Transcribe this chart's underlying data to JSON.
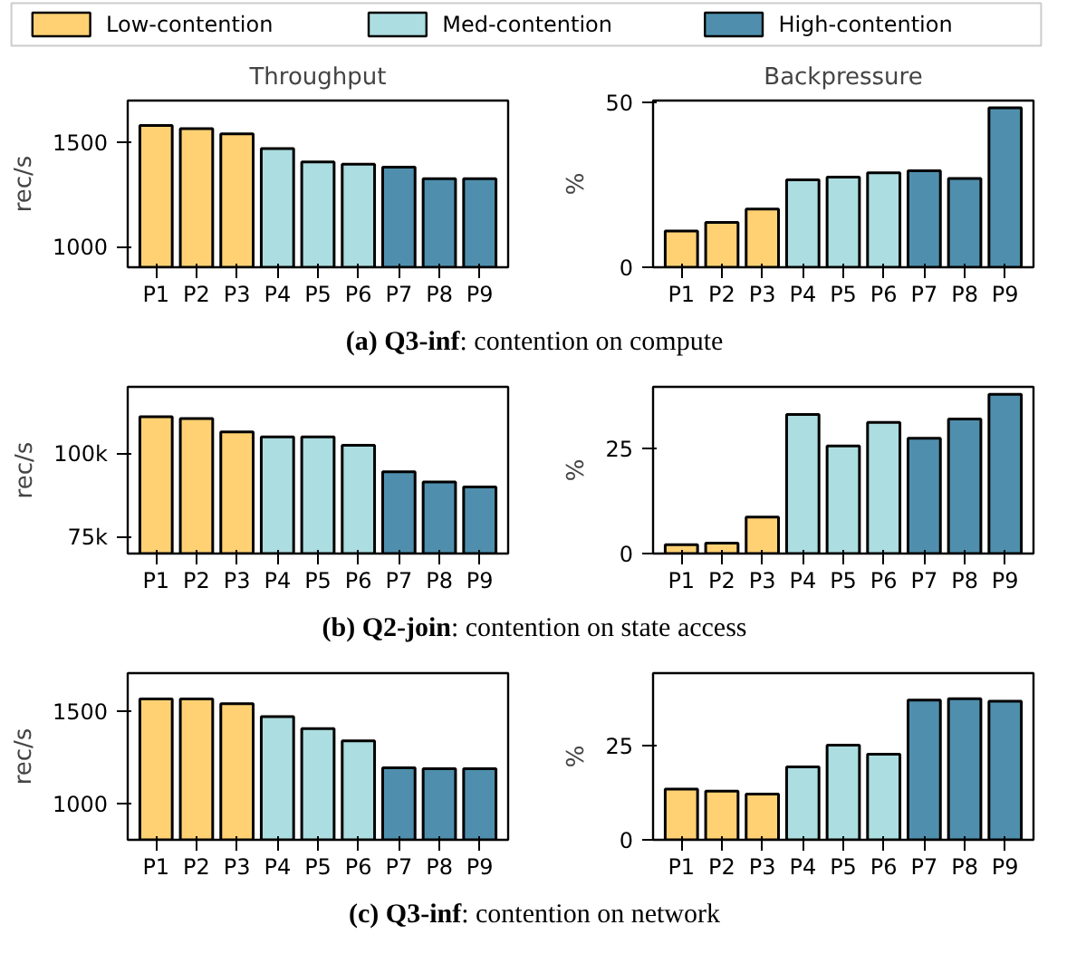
{
  "chart_data": [
    {
      "type": "bar",
      "title": "Throughput",
      "ylabel": "rec/s",
      "legend": "top",
      "annotations": [
        "(a) Q3-inf: contention on compute"
      ],
      "categories": [
        "P1",
        "P2",
        "P3",
        "P4",
        "P5",
        "P6",
        "P7",
        "P8",
        "P9"
      ],
      "ylim": [
        900,
        1700
      ],
      "yticks": [
        1000,
        1500
      ],
      "series": [
        {
          "name": "Low-contention",
          "color": "#ffd173",
          "values": [
            1580,
            1565,
            1540,
            null,
            null,
            null,
            null,
            null,
            null
          ]
        },
        {
          "name": "Med-contention",
          "color": "#acdde0",
          "values": [
            null,
            null,
            null,
            1470,
            1405,
            1395,
            null,
            null,
            null
          ]
        },
        {
          "name": "High-contention",
          "color": "#4f8fad",
          "values": [
            null,
            null,
            null,
            null,
            null,
            null,
            1380,
            1325,
            1325
          ]
        }
      ]
    },
    {
      "type": "bar",
      "title": "Backpressure",
      "ylabel": "%",
      "categories": [
        "P1",
        "P2",
        "P3",
        "P4",
        "P5",
        "P6",
        "P7",
        "P8",
        "P9"
      ],
      "ylim": [
        0,
        50.5
      ],
      "yticks": [
        0,
        50
      ],
      "series": [
        {
          "color": "#ffd173",
          "values": [
            11,
            13.6,
            17.6,
            null,
            null,
            null,
            null,
            null,
            null
          ]
        },
        {
          "color": "#acdde0",
          "values": [
            null,
            null,
            null,
            26.5,
            27.3,
            28.6,
            null,
            null,
            null
          ]
        },
        {
          "color": "#4f8fad",
          "values": [
            null,
            null,
            null,
            null,
            null,
            null,
            29.2,
            26.9,
            48.3
          ]
        }
      ]
    },
    {
      "type": "bar",
      "ylabel": "rec/s",
      "annotations": [
        "(b) Q2-join: contention on state access"
      ],
      "categories": [
        "P1",
        "P2",
        "P3",
        "P4",
        "P5",
        "P6",
        "P7",
        "P8",
        "P9"
      ],
      "ylim": [
        70000,
        120000
      ],
      "yticks": [
        {
          "value": 75000,
          "label": "75k"
        },
        {
          "value": 100000,
          "label": "100k"
        }
      ],
      "series": [
        {
          "color": "#ffd173",
          "values": [
            111000,
            110500,
            106500,
            null,
            null,
            null,
            null,
            null,
            null
          ]
        },
        {
          "color": "#acdde0",
          "values": [
            null,
            null,
            null,
            105000,
            105000,
            102500,
            null,
            null,
            null
          ]
        },
        {
          "color": "#4f8fad",
          "values": [
            null,
            null,
            null,
            null,
            null,
            null,
            94500,
            91500,
            90000
          ]
        }
      ]
    },
    {
      "type": "bar",
      "ylabel": "%",
      "categories": [
        "P1",
        "P2",
        "P3",
        "P4",
        "P5",
        "P6",
        "P7",
        "P8",
        "P9"
      ],
      "ylim": [
        0,
        39.8
      ],
      "yticks": [
        0,
        25
      ],
      "series": [
        {
          "color": "#ffd173",
          "values": [
            2.1,
            2.5,
            8.7,
            null,
            null,
            null,
            null,
            null,
            null
          ]
        },
        {
          "color": "#acdde0",
          "values": [
            null,
            null,
            null,
            33.2,
            25.7,
            31.3,
            null,
            null,
            null
          ]
        },
        {
          "color": "#4f8fad",
          "values": [
            null,
            null,
            null,
            null,
            null,
            null,
            27.5,
            32.1,
            38
          ]
        }
      ]
    },
    {
      "type": "bar",
      "ylabel": "rec/s",
      "annotations": [
        "(c) Q3-inf: contention on network"
      ],
      "categories": [
        "P1",
        "P2",
        "P3",
        "P4",
        "P5",
        "P6",
        "P7",
        "P8",
        "P9"
      ],
      "ylim": [
        807,
        1704
      ],
      "yticks": [
        1000,
        1500
      ],
      "series": [
        {
          "color": "#ffd173",
          "values": [
            1565,
            1565,
            1540,
            null,
            null,
            null,
            null,
            null,
            null
          ]
        },
        {
          "color": "#acdde0",
          "values": [
            null,
            null,
            null,
            1470,
            1405,
            1340,
            null,
            null,
            null
          ]
        },
        {
          "color": "#4f8fad",
          "values": [
            null,
            null,
            null,
            null,
            null,
            null,
            1195,
            1190,
            1190
          ]
        }
      ]
    },
    {
      "type": "bar",
      "ylabel": "%",
      "categories": [
        "P1",
        "P2",
        "P3",
        "P4",
        "P5",
        "P6",
        "P7",
        "P8",
        "P9"
      ],
      "ylim": [
        0,
        44.4
      ],
      "yticks": [
        0,
        25
      ],
      "series": [
        {
          "color": "#ffd173",
          "values": [
            13.5,
            13,
            12.2,
            null,
            null,
            null,
            null,
            null,
            null
          ]
        },
        {
          "color": "#acdde0",
          "values": [
            null,
            null,
            null,
            19.4,
            25.2,
            22.8,
            null,
            null,
            null
          ]
        },
        {
          "color": "#4f8fad",
          "values": [
            null,
            null,
            null,
            null,
            null,
            null,
            37.2,
            37.6,
            36.9
          ]
        }
      ]
    }
  ]
}
